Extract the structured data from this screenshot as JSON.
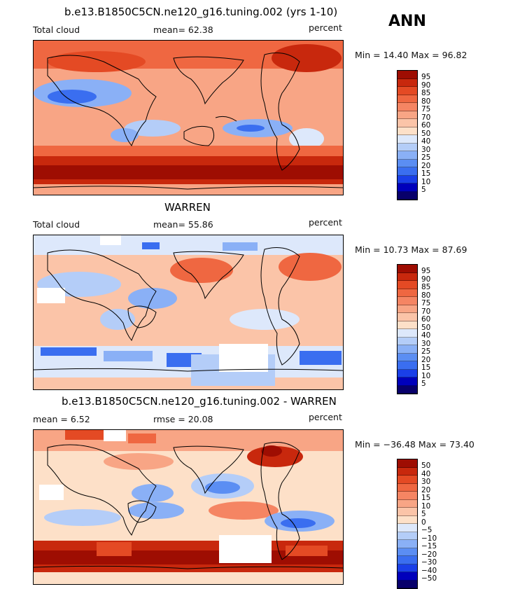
{
  "page_title": "ANN",
  "colors": {
    "abs_scale": [
      "#f2f2f2",
      "#08006b",
      "#0000bb",
      "#1a3fe8",
      "#3a6ef0",
      "#5b8ef3",
      "#8ab0f6",
      "#b4cdf8",
      "#dde8fb",
      "#fde0c8",
      "#fbc4a8",
      "#f8a585",
      "#f58563",
      "#ef6741",
      "#e44a24",
      "#c8280d",
      "#9e0d02"
    ],
    "diff_scale": [
      "#08006b",
      "#0000bb",
      "#1a3fe8",
      "#3a6ef0",
      "#5b8ef3",
      "#8ab0f6",
      "#b4cdf8",
      "#dde8fb",
      "#fde0c8",
      "#fbc4a8",
      "#f8a585",
      "#f58563",
      "#ef6741",
      "#e44a24",
      "#c8280d",
      "#9e0d02"
    ]
  },
  "panels": [
    {
      "title": "b.e13.B1850C5CN.ne120_g16.tuning.002 (yrs 1-10)",
      "left_label": "Total cloud",
      "mid_label": "mean=   62.38",
      "right_label": "percent",
      "minmax": "Min =   14.40 Max =   96.82",
      "colorbar_labels": [
        "95",
        "90",
        "85",
        "80",
        "75",
        "70",
        "60",
        "50",
        "40",
        "30",
        "25",
        "20",
        "15",
        "10",
        "5"
      ]
    },
    {
      "title": "WARREN",
      "left_label": "Total cloud",
      "mid_label": "mean=   55.86",
      "right_label": "percent",
      "minmax": "Min =   10.73 Max =   87.69",
      "colorbar_labels": [
        "95",
        "90",
        "85",
        "80",
        "75",
        "70",
        "60",
        "50",
        "40",
        "30",
        "25",
        "20",
        "15",
        "10",
        "5"
      ]
    },
    {
      "title": "b.e13.B1850C5CN.ne120_g16.tuning.002 - WARREN",
      "left_label": "mean =    6.52",
      "mid_label": "rmse =   20.08",
      "right_label": "percent",
      "minmax": "Min = −36.48 Max =   73.40",
      "colorbar_labels": [
        "50",
        "40",
        "30",
        "20",
        "15",
        "10",
        "5",
        "0",
        "−5",
        "−10",
        "−15",
        "−20",
        "−30",
        "−40",
        "−50"
      ]
    }
  ]
}
